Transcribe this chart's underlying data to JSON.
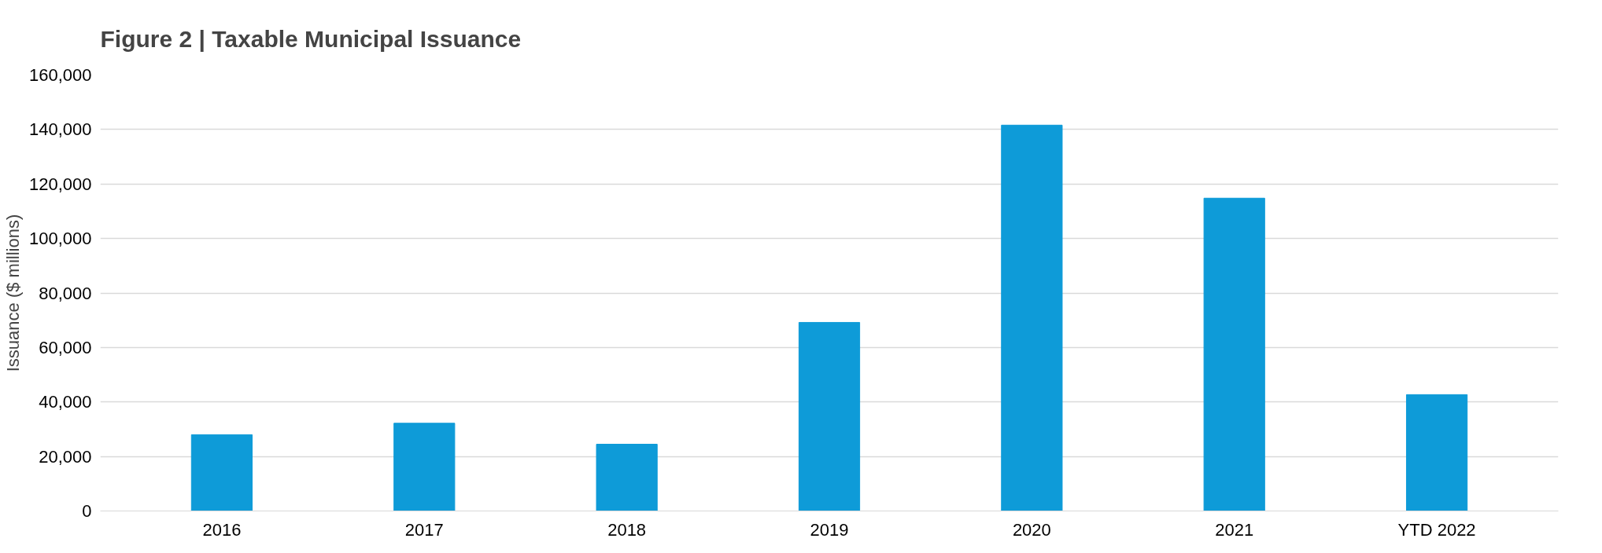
{
  "chart_data": {
    "type": "bar",
    "title": "Figure 2 | Taxable Municipal Issuance",
    "ylabel": "Issuance ($ millions)",
    "categories": [
      "2016",
      "2017",
      "2018",
      "2019",
      "2020",
      "2021",
      "YTD 2022"
    ],
    "values": [
      28000,
      32200,
      24500,
      69200,
      141600,
      114800,
      42700
    ],
    "color": "#0e9bd8",
    "ylim": [
      0,
      160000
    ],
    "yticks": [
      {
        "value": 0,
        "label": "0"
      },
      {
        "value": 20000,
        "label": "20,000"
      },
      {
        "value": 40000,
        "label": "40,000"
      },
      {
        "value": 60000,
        "label": "60,000"
      },
      {
        "value": 80000,
        "label": "80,000"
      },
      {
        "value": 100000,
        "label": "100,000"
      },
      {
        "value": 120000,
        "label": "120,000"
      },
      {
        "value": 140000,
        "label": "140,000"
      },
      {
        "value": 160000,
        "label": "160,000"
      }
    ],
    "grid": "y"
  }
}
